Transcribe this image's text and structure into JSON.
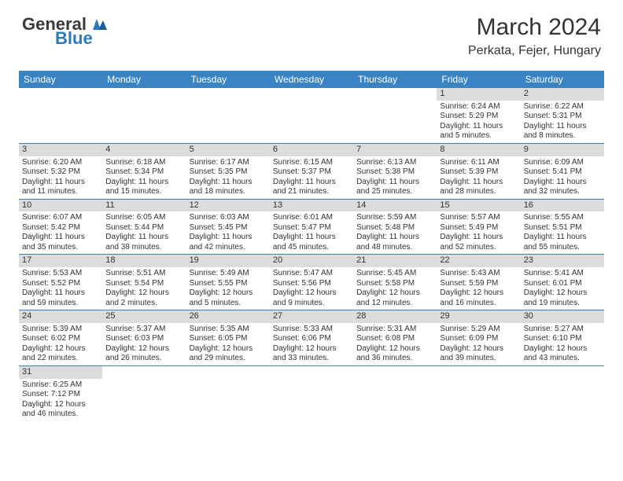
{
  "logo": {
    "text1": "General",
    "text2": "Blue"
  },
  "title": "March 2024",
  "location": "Perkata, Fejer, Hungary",
  "colors": {
    "header_bg": "#3b84c4",
    "header_fg": "#ffffff",
    "daynum_bg": "#dcdcdc",
    "row_divider": "#3b84c4"
  },
  "weekdays": [
    "Sunday",
    "Monday",
    "Tuesday",
    "Wednesday",
    "Thursday",
    "Friday",
    "Saturday"
  ],
  "first_weekday_index": 5,
  "num_days": 31,
  "days": {
    "1": {
      "sunrise": "6:24 AM",
      "sunset": "5:29 PM",
      "day_h": 11,
      "day_m": 5
    },
    "2": {
      "sunrise": "6:22 AM",
      "sunset": "5:31 PM",
      "day_h": 11,
      "day_m": 8
    },
    "3": {
      "sunrise": "6:20 AM",
      "sunset": "5:32 PM",
      "day_h": 11,
      "day_m": 11
    },
    "4": {
      "sunrise": "6:18 AM",
      "sunset": "5:34 PM",
      "day_h": 11,
      "day_m": 15
    },
    "5": {
      "sunrise": "6:17 AM",
      "sunset": "5:35 PM",
      "day_h": 11,
      "day_m": 18
    },
    "6": {
      "sunrise": "6:15 AM",
      "sunset": "5:37 PM",
      "day_h": 11,
      "day_m": 21
    },
    "7": {
      "sunrise": "6:13 AM",
      "sunset": "5:38 PM",
      "day_h": 11,
      "day_m": 25
    },
    "8": {
      "sunrise": "6:11 AM",
      "sunset": "5:39 PM",
      "day_h": 11,
      "day_m": 28
    },
    "9": {
      "sunrise": "6:09 AM",
      "sunset": "5:41 PM",
      "day_h": 11,
      "day_m": 32
    },
    "10": {
      "sunrise": "6:07 AM",
      "sunset": "5:42 PM",
      "day_h": 11,
      "day_m": 35
    },
    "11": {
      "sunrise": "6:05 AM",
      "sunset": "5:44 PM",
      "day_h": 11,
      "day_m": 38
    },
    "12": {
      "sunrise": "6:03 AM",
      "sunset": "5:45 PM",
      "day_h": 11,
      "day_m": 42
    },
    "13": {
      "sunrise": "6:01 AM",
      "sunset": "5:47 PM",
      "day_h": 11,
      "day_m": 45
    },
    "14": {
      "sunrise": "5:59 AM",
      "sunset": "5:48 PM",
      "day_h": 11,
      "day_m": 48
    },
    "15": {
      "sunrise": "5:57 AM",
      "sunset": "5:49 PM",
      "day_h": 11,
      "day_m": 52
    },
    "16": {
      "sunrise": "5:55 AM",
      "sunset": "5:51 PM",
      "day_h": 11,
      "day_m": 55
    },
    "17": {
      "sunrise": "5:53 AM",
      "sunset": "5:52 PM",
      "day_h": 11,
      "day_m": 59
    },
    "18": {
      "sunrise": "5:51 AM",
      "sunset": "5:54 PM",
      "day_h": 12,
      "day_m": 2
    },
    "19": {
      "sunrise": "5:49 AM",
      "sunset": "5:55 PM",
      "day_h": 12,
      "day_m": 5
    },
    "20": {
      "sunrise": "5:47 AM",
      "sunset": "5:56 PM",
      "day_h": 12,
      "day_m": 9
    },
    "21": {
      "sunrise": "5:45 AM",
      "sunset": "5:58 PM",
      "day_h": 12,
      "day_m": 12
    },
    "22": {
      "sunrise": "5:43 AM",
      "sunset": "5:59 PM",
      "day_h": 12,
      "day_m": 16
    },
    "23": {
      "sunrise": "5:41 AM",
      "sunset": "6:01 PM",
      "day_h": 12,
      "day_m": 19
    },
    "24": {
      "sunrise": "5:39 AM",
      "sunset": "6:02 PM",
      "day_h": 12,
      "day_m": 22
    },
    "25": {
      "sunrise": "5:37 AM",
      "sunset": "6:03 PM",
      "day_h": 12,
      "day_m": 26
    },
    "26": {
      "sunrise": "5:35 AM",
      "sunset": "6:05 PM",
      "day_h": 12,
      "day_m": 29
    },
    "27": {
      "sunrise": "5:33 AM",
      "sunset": "6:06 PM",
      "day_h": 12,
      "day_m": 33
    },
    "28": {
      "sunrise": "5:31 AM",
      "sunset": "6:08 PM",
      "day_h": 12,
      "day_m": 36
    },
    "29": {
      "sunrise": "5:29 AM",
      "sunset": "6:09 PM",
      "day_h": 12,
      "day_m": 39
    },
    "30": {
      "sunrise": "5:27 AM",
      "sunset": "6:10 PM",
      "day_h": 12,
      "day_m": 43
    },
    "31": {
      "sunrise": "6:25 AM",
      "sunset": "7:12 PM",
      "day_h": 12,
      "day_m": 46
    }
  },
  "labels": {
    "sunrise": "Sunrise: ",
    "sunset": "Sunset: ",
    "daylight_prefix": "Daylight: ",
    "hours_word": " hours",
    "and_word": "and ",
    "minutes_word": " minutes."
  }
}
